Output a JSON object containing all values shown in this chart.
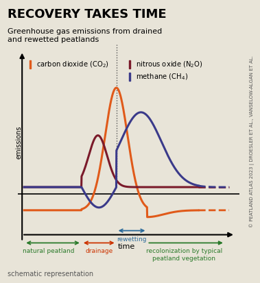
{
  "title": "RECOVERY TAKES TIME",
  "subtitle": "Greenhouse gas emissions from drained\nand rewetted peatlands",
  "background_color": "#e8e4d8",
  "co2_color": "#e05a1a",
  "n2o_color": "#7a1a2a",
  "ch4_color": "#3a3a8a",
  "natural_arrow_color": "#2a7a2a",
  "drainage_arrow_color": "#cc3300",
  "rewetting_arrow_color": "#2a6a9a",
  "recolonization_arrow_color": "#2a7a2a",
  "axis_color": "#000000",
  "dotted_line_color": "#555555",
  "xlabel": "time",
  "ylabel": "emissions",
  "source_text": "© PEATLAND ATLAS 2023 | DROESLER ET AL., VANSELOW-ALGAN ET AL.",
  "schematic_text": "schematic representation",
  "legend": [
    {
      "label": "carbon dioxide (CO₂)",
      "color": "#e05a1a"
    },
    {
      "label": "nitrous oxide (N₂O)",
      "color": "#7a1a2a"
    },
    {
      "label": "methane (CH₄)",
      "color": "#3a3a8a"
    }
  ]
}
